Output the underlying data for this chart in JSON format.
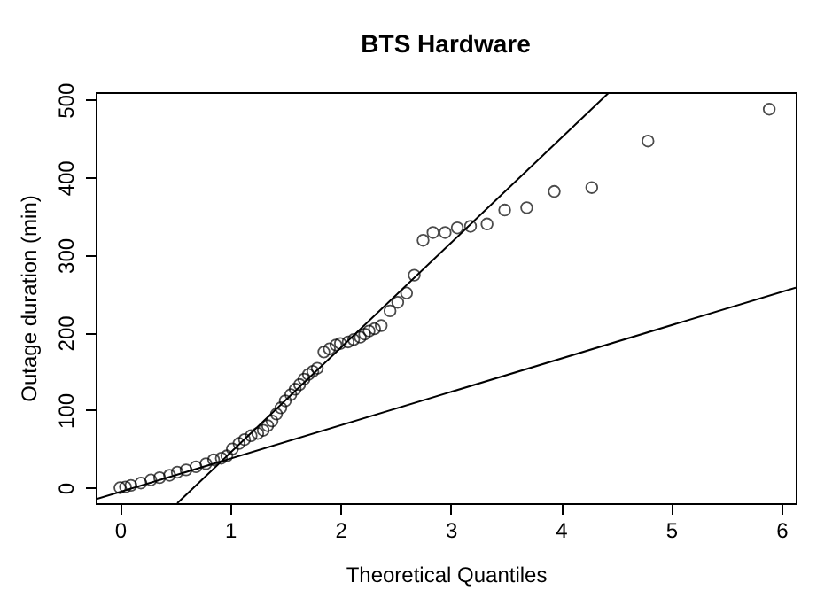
{
  "chart_data": {
    "type": "scatter",
    "title": "BTS Hardware",
    "xlabel": "Theoretical Quantiles",
    "ylabel": "Outage duration (min)",
    "xlim": [
      -0.22,
      6.13
    ],
    "ylim": [
      -20,
      510
    ],
    "xticks": [
      0,
      1,
      2,
      3,
      4,
      5,
      6
    ],
    "yticks": [
      0,
      100,
      200,
      300,
      400,
      500
    ],
    "grid": false,
    "marker": "circle",
    "series": [
      {
        "color": "#000000",
        "x": [
          0,
          0.05,
          0.1,
          0.19,
          0.28,
          0.36,
          0.45,
          0.52,
          0.6,
          0.69,
          0.78,
          0.85,
          0.92,
          0.97,
          1.02,
          1.08,
          1.13,
          1.19,
          1.25,
          1.3,
          1.34,
          1.38,
          1.42,
          1.46,
          1.5,
          1.55,
          1.59,
          1.63,
          1.67,
          1.71,
          1.75,
          1.79,
          1.85,
          1.9,
          1.96,
          2.0,
          2.07,
          2.12,
          2.18,
          2.22,
          2.26,
          2.31,
          2.37,
          2.45,
          2.52,
          2.6,
          2.67,
          2.75,
          2.84,
          2.95,
          3.06,
          3.18,
          3.33,
          3.49,
          3.69,
          3.94,
          4.28,
          4.79,
          5.89
        ],
        "values": [
          0,
          1,
          3,
          6,
          10,
          13,
          16,
          20,
          23,
          27,
          31,
          36,
          38,
          41,
          50,
          57,
          62,
          67,
          70,
          74,
          80,
          86,
          95,
          103,
          112,
          120,
          127,
          133,
          140,
          146,
          150,
          154,
          175,
          179,
          184,
          186,
          188,
          191,
          194,
          198,
          202,
          205,
          209,
          228,
          239,
          251,
          274,
          319,
          329,
          329,
          335,
          337,
          340,
          358,
          361,
          382,
          387,
          447,
          488
        ]
      },
      {
        "type": "line",
        "color": "#000000",
        "marker": "none",
        "line_style": "solid",
        "x": [
          0.52,
          4.44
        ],
        "values": [
          -20,
          510
        ]
      },
      {
        "type": "line",
        "color": "#000000",
        "marker": "none",
        "line_style": "solid",
        "x": [
          -0.22,
          6.13
        ],
        "values": [
          -15,
          258
        ]
      }
    ]
  }
}
